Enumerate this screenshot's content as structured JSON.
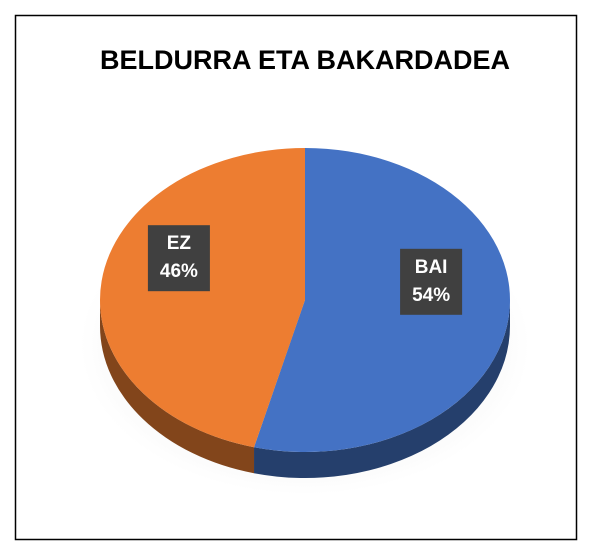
{
  "chart_data": {
    "type": "pie",
    "title": "BELDURRA ETA BAKARDADEA",
    "categories": [
      "BAI",
      "EZ"
    ],
    "values": [
      54,
      46
    ],
    "value_labels": [
      "54%",
      "46%"
    ],
    "colors": [
      "#4472c4",
      "#ed7d31"
    ]
  }
}
